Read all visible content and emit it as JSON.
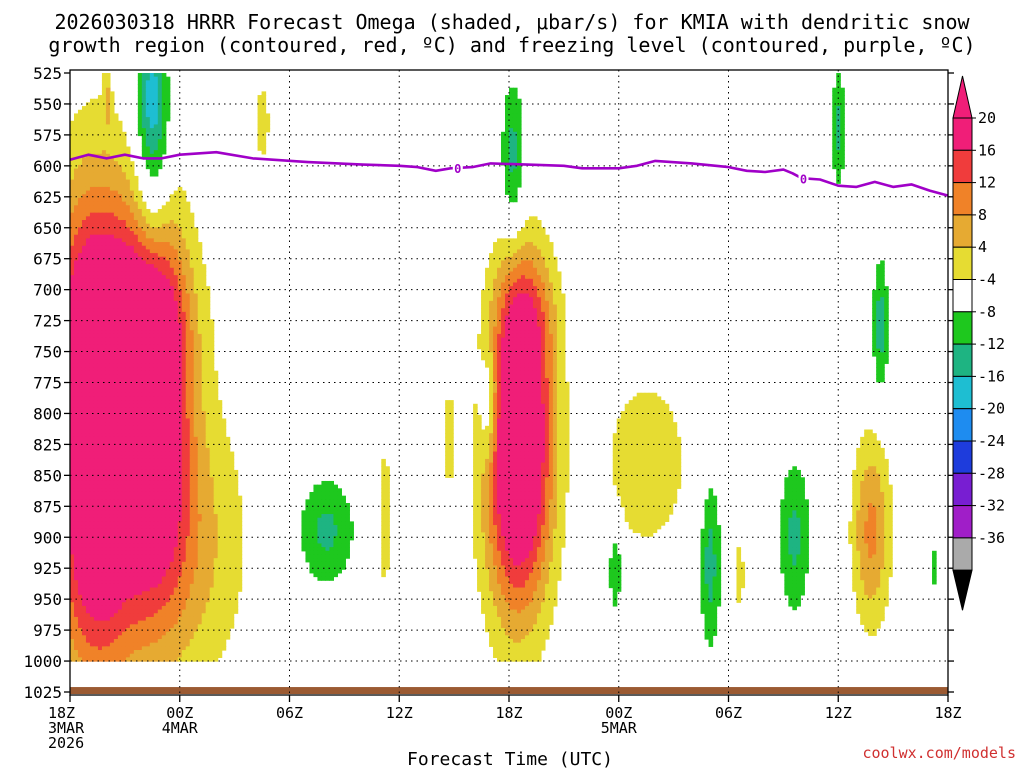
{
  "chart_data": {
    "type": "heatmap",
    "title": "2026030318 HRRR Forecast Omega (shaded, μbar/s) for KMIA with dendritic snow growth region (contoured, red, ºC) and freezing level (contoured, purple, ºC)",
    "title_line1": "2026030318 HRRR Forecast Omega (shaded, μbar/s) for KMIA with dendritic snow",
    "title_line2": "growth region (contoured, red, ºC) and freezing level (contoured, purple, ºC)",
    "xlabel": "Forecast Time (UTC)",
    "x_forecast_hours_range": [
      0,
      48
    ],
    "x_ticks": [
      {
        "hour": 0,
        "labels": [
          "18Z",
          "3MAR",
          "2026"
        ]
      },
      {
        "hour": 6,
        "labels": [
          "00Z",
          "4MAR"
        ]
      },
      {
        "hour": 12,
        "labels": [
          "06Z"
        ]
      },
      {
        "hour": 18,
        "labels": [
          "12Z"
        ]
      },
      {
        "hour": 24,
        "labels": [
          "18Z"
        ]
      },
      {
        "hour": 30,
        "labels": [
          "00Z",
          "5MAR"
        ]
      },
      {
        "hour": 36,
        "labels": [
          "06Z"
        ]
      },
      {
        "hour": 42,
        "labels": [
          "12Z"
        ]
      },
      {
        "hour": 48,
        "labels": [
          "18Z"
        ]
      }
    ],
    "y_pressure_range_hpa": [
      1025,
      525
    ],
    "y_ticks": [
      "525",
      "550",
      "575",
      "600",
      "625",
      "650",
      "675",
      "700",
      "725",
      "750",
      "775",
      "800",
      "825",
      "850",
      "875",
      "900",
      "925",
      "950",
      "975",
      "1000",
      "1025"
    ],
    "colorbar": {
      "labels": [
        "20",
        "16",
        "12",
        "8",
        "4",
        "-4",
        "-8",
        "-12",
        "-16",
        "-20",
        "-24",
        "-28",
        "-32",
        "-36"
      ],
      "bins": [
        {
          "lo": 20,
          "hi": 24,
          "color": "#f01e78"
        },
        {
          "lo": 16,
          "hi": 20,
          "color": "#f03c3c"
        },
        {
          "lo": 12,
          "hi": 16,
          "color": "#f08228"
        },
        {
          "lo": 8,
          "hi": 12,
          "color": "#e6aa32"
        },
        {
          "lo": 4,
          "hi": 8,
          "color": "#e6dc32"
        },
        {
          "lo": -4,
          "hi": 4,
          "color": "#ffffff"
        },
        {
          "lo": -8,
          "hi": -4,
          "color": "#1ec81e"
        },
        {
          "lo": -12,
          "hi": -8,
          "color": "#1eb482"
        },
        {
          "lo": -16,
          "hi": -12,
          "color": "#1ebed2"
        },
        {
          "lo": -20,
          "hi": -16,
          "color": "#1e8cf0"
        },
        {
          "lo": -24,
          "hi": -20,
          "color": "#1e3cdc"
        },
        {
          "lo": -28,
          "hi": -24,
          "color": "#781ed2"
        },
        {
          "lo": -32,
          "hi": -28,
          "color": "#a01ec8"
        },
        {
          "lo": -36,
          "hi": -32,
          "color": "#aaaaaa"
        }
      ]
    },
    "omega_features": [
      {
        "t": 1.3,
        "p": 795,
        "st": 1.6,
        "sp": 125,
        "v": 28
      },
      {
        "t": 4.6,
        "p": 790,
        "st": 1.3,
        "sp": 105,
        "v": 27
      },
      {
        "t": 3.1,
        "p": 730,
        "st": 1.6,
        "sp": 22,
        "v": 8
      },
      {
        "t": 2.8,
        "p": 715,
        "st": 2.8,
        "sp": 55,
        "v": 9
      },
      {
        "t": 1.5,
        "p": 930,
        "st": 1.6,
        "sp": 75,
        "v": 9
      },
      {
        "t": 6.2,
        "p": 905,
        "st": 2.4,
        "sp": 85,
        "v": 10
      },
      {
        "t": 2.7,
        "p": 810,
        "st": 0.5,
        "sp": 35,
        "v": -13
      },
      {
        "t": 4.5,
        "p": 595,
        "st": 0.7,
        "sp": 65,
        "v": -12
      },
      {
        "t": 4.5,
        "p": 540,
        "st": 0.5,
        "sp": 30,
        "v": -8
      },
      {
        "t": 2.0,
        "p": 545,
        "st": 0.15,
        "sp": 18,
        "v": 6
      },
      {
        "t": 10.5,
        "p": 565,
        "st": 0.35,
        "sp": 28,
        "v": 6
      },
      {
        "t": 24.6,
        "p": 810,
        "st": 1.2,
        "sp": 85,
        "v": 27
      },
      {
        "t": 24.4,
        "p": 880,
        "st": 1.4,
        "sp": 85,
        "v": 10
      },
      {
        "t": 25.0,
        "p": 720,
        "st": 1.2,
        "sp": 40,
        "v": 8
      },
      {
        "t": 22.9,
        "p": 795,
        "st": 0.35,
        "sp": 35,
        "v": -10
      },
      {
        "t": 24.2,
        "p": 595,
        "st": 0.45,
        "sp": 45,
        "v": -10
      },
      {
        "t": 14.0,
        "p": 895,
        "st": 1.1,
        "sp": 32,
        "v": -9
      },
      {
        "t": 17.2,
        "p": 885,
        "st": 0.3,
        "sp": 55,
        "v": 6
      },
      {
        "t": 20.7,
        "p": 820,
        "st": 0.25,
        "sp": 35,
        "v": 6
      },
      {
        "t": 31.5,
        "p": 840,
        "st": 1.8,
        "sp": 55,
        "v": 7
      },
      {
        "t": 29.8,
        "p": 925,
        "st": 0.25,
        "sp": 25,
        "v": -9
      },
      {
        "t": 35.0,
        "p": 920,
        "st": 0.4,
        "sp": 50,
        "v": -10
      },
      {
        "t": 36.6,
        "p": 930,
        "st": 0.2,
        "sp": 25,
        "v": 6
      },
      {
        "t": 39.6,
        "p": 900,
        "st": 0.6,
        "sp": 45,
        "v": -9
      },
      {
        "t": 43.8,
        "p": 895,
        "st": 0.75,
        "sp": 55,
        "v": 13
      },
      {
        "t": 44.3,
        "p": 730,
        "st": 0.3,
        "sp": 40,
        "v": -10
      },
      {
        "t": 42.0,
        "p": 570,
        "st": 0.25,
        "sp": 35,
        "v": -9
      },
      {
        "t": 47.3,
        "p": 925,
        "st": 0.1,
        "sp": 12,
        "v": -9
      }
    ],
    "freezing_level_0C": {
      "color": "#a000c8",
      "label": "0",
      "label_hours": [
        21.2,
        40.1
      ],
      "points": [
        [
          0,
          595
        ],
        [
          1,
          591
        ],
        [
          2,
          594
        ],
        [
          3,
          591
        ],
        [
          4,
          594
        ],
        [
          5,
          594
        ],
        [
          6,
          591
        ],
        [
          8,
          589
        ],
        [
          10,
          594
        ],
        [
          13,
          597
        ],
        [
          16,
          599
        ],
        [
          18,
          600
        ],
        [
          19,
          601
        ],
        [
          20,
          604
        ],
        [
          20.8,
          602
        ],
        [
          22,
          601
        ],
        [
          23,
          598
        ],
        [
          25,
          599
        ],
        [
          27,
          600
        ],
        [
          28,
          602
        ],
        [
          30,
          602
        ],
        [
          31,
          600
        ],
        [
          32,
          596
        ],
        [
          34,
          598
        ],
        [
          36,
          601
        ],
        [
          37,
          604
        ],
        [
          38,
          605
        ],
        [
          39,
          603
        ],
        [
          39.5,
          606
        ],
        [
          40,
          610
        ],
        [
          41,
          611
        ],
        [
          42,
          616
        ],
        [
          43,
          617
        ],
        [
          44,
          613
        ],
        [
          45,
          617
        ],
        [
          46,
          615
        ],
        [
          47,
          620
        ],
        [
          48,
          624
        ],
        [
          49,
          620
        ]
      ]
    },
    "terrain_color": "#9b5a32",
    "credit": "coolwx.com/models"
  }
}
